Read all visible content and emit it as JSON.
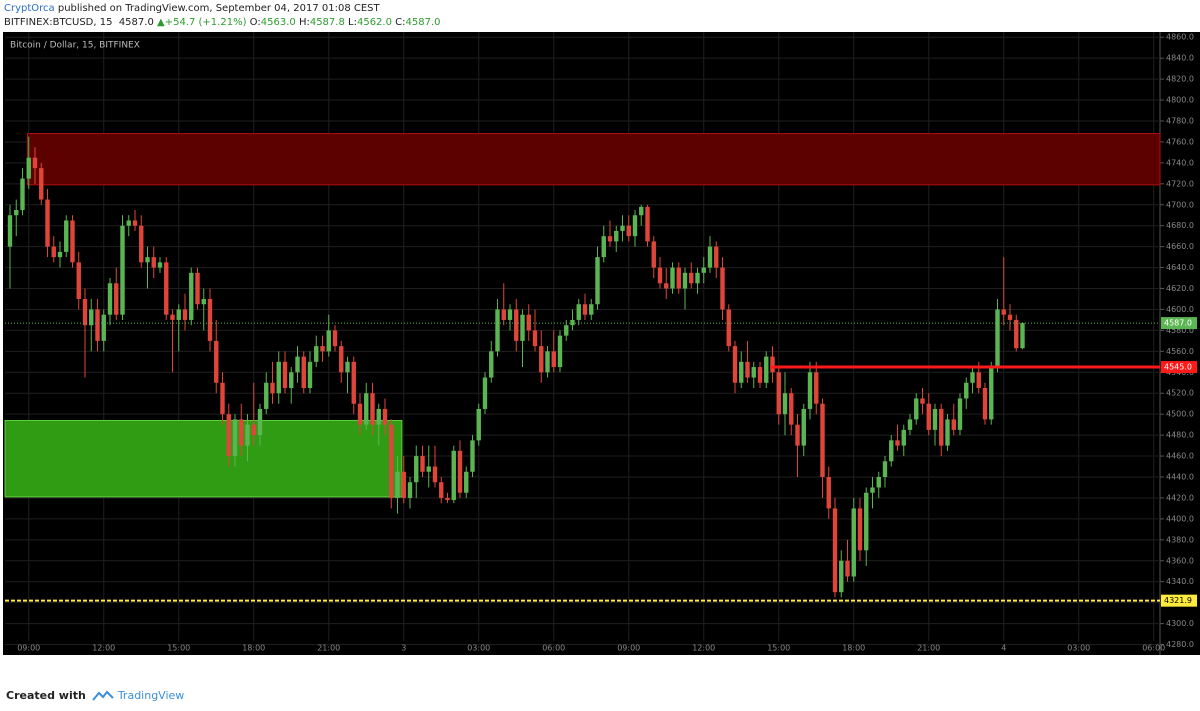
{
  "header": {
    "author": "CryptOrca",
    "published": "published on TradingView.com, September 04, 2017 01:08 CEST",
    "symbol": "BITFINEX:BTCUSD, 15",
    "last": "4587.0",
    "arrow": "▲",
    "change": "+54.7 (+1.21%)",
    "ohlc": [
      {
        "key": "O:",
        "value": "4563.0"
      },
      {
        "key": "H:",
        "value": "4587.8"
      },
      {
        "key": "L:",
        "value": "4562.0"
      },
      {
        "key": "C:",
        "value": "4587.0"
      }
    ]
  },
  "chart_data": {
    "type": "candlestick",
    "title": "Bitcoin / Dollar, 15, BITFINEX",
    "up_color": "#5bb552",
    "down_color": "#e0453a",
    "ylim": [
      4270,
      4865
    ],
    "xlim": [
      -0.8,
      184
    ],
    "yticks": [
      {
        "value": 4280,
        "label": "4280.0"
      },
      {
        "value": 4300,
        "label": "4300.0"
      },
      {
        "value": 4320,
        "label": "4320.0"
      },
      {
        "value": 4340,
        "label": "4340.0"
      },
      {
        "value": 4360,
        "label": "4360.0"
      },
      {
        "value": 4380,
        "label": "4380.0"
      },
      {
        "value": 4400,
        "label": "4400.0"
      },
      {
        "value": 4420,
        "label": "4420.0"
      },
      {
        "value": 4440,
        "label": "4440.0"
      },
      {
        "value": 4460,
        "label": "4460.0"
      },
      {
        "value": 4480,
        "label": "4480.0"
      },
      {
        "value": 4500,
        "label": "4500.0"
      },
      {
        "value": 4520,
        "label": "4520.0"
      },
      {
        "value": 4540,
        "label": "4540.0"
      },
      {
        "value": 4560,
        "label": "4560.0"
      },
      {
        "value": 4580,
        "label": "4580.0"
      },
      {
        "value": 4600,
        "label": "4600.0"
      },
      {
        "value": 4620,
        "label": "4620.0"
      },
      {
        "value": 4640,
        "label": "4640.0"
      },
      {
        "value": 4660,
        "label": "4660.0"
      },
      {
        "value": 4680,
        "label": "4680.0"
      },
      {
        "value": 4700,
        "label": "4700.0"
      },
      {
        "value": 4720,
        "label": "4720.0"
      },
      {
        "value": 4740,
        "label": "4740.0"
      },
      {
        "value": 4760,
        "label": "4760.0"
      },
      {
        "value": 4780,
        "label": "4780.0"
      },
      {
        "value": 4800,
        "label": "4800.0"
      },
      {
        "value": 4820,
        "label": "4820.0"
      },
      {
        "value": 4840,
        "label": "4840.0"
      },
      {
        "value": 4860,
        "label": "4860.0"
      }
    ],
    "xticks": [
      {
        "value": 3,
        "label": "09:00"
      },
      {
        "value": 15,
        "label": "12:00"
      },
      {
        "value": 27,
        "label": "15:00"
      },
      {
        "value": 39,
        "label": "18:00"
      },
      {
        "value": 51,
        "label": "21:00"
      },
      {
        "value": 63,
        "label": "3"
      },
      {
        "value": 75,
        "label": "03:00"
      },
      {
        "value": 87,
        "label": "06:00"
      },
      {
        "value": 99,
        "label": "09:00"
      },
      {
        "value": 111,
        "label": "12:00"
      },
      {
        "value": 123,
        "label": "15:00"
      },
      {
        "value": 135,
        "label": "18:00"
      },
      {
        "value": 147,
        "label": "21:00"
      },
      {
        "value": 159,
        "label": "4"
      },
      {
        "value": 171,
        "label": "03:00"
      },
      {
        "value": 183,
        "label": "06:00"
      }
    ],
    "zones": [
      {
        "x": [
          2.8,
          184
        ],
        "y": [
          4719,
          4768
        ],
        "color": "#5c0000",
        "border": "#b01010"
      },
      {
        "x": [
          -0.8,
          62.7
        ],
        "y": [
          4421,
          4494
        ],
        "color": "#2f9c14",
        "border": "#5fd040"
      }
    ],
    "lines": [
      {
        "value": 4587,
        "label": "4587.0",
        "color": "#5bb552",
        "style": "dotted",
        "start": -0.8
      },
      {
        "value": 4545,
        "label": "4545.0",
        "color": "#ff1a1a",
        "style": "solid",
        "start": 121.6
      },
      {
        "value": 4321.9,
        "label": "4321.9",
        "color": "#ffeb3b",
        "style": "dashed",
        "start": -0.8
      }
    ],
    "candles": [
      [
        4660,
        4700,
        4620,
        4690
      ],
      [
        4690,
        4705,
        4670,
        4695
      ],
      [
        4695,
        4735,
        4690,
        4725
      ],
      [
        4725,
        4765,
        4715,
        4745
      ],
      [
        4745,
        4755,
        4720,
        4735
      ],
      [
        4735,
        4740,
        4700,
        4705
      ],
      [
        4705,
        4715,
        4650,
        4660
      ],
      [
        4660,
        4670,
        4645,
        4650
      ],
      [
        4650,
        4665,
        4640,
        4655
      ],
      [
        4655,
        4690,
        4650,
        4685
      ],
      [
        4685,
        4690,
        4640,
        4645
      ],
      [
        4645,
        4655,
        4600,
        4610
      ],
      [
        4610,
        4620,
        4535,
        4585
      ],
      [
        4585,
        4610,
        4560,
        4600
      ],
      [
        4600,
        4610,
        4560,
        4570
      ],
      [
        4570,
        4600,
        4560,
        4595
      ],
      [
        4595,
        4630,
        4585,
        4625
      ],
      [
        4625,
        4640,
        4590,
        4595
      ],
      [
        4595,
        4690,
        4590,
        4680
      ],
      [
        4680,
        4690,
        4670,
        4685
      ],
      [
        4685,
        4695,
        4675,
        4680
      ],
      [
        4680,
        4690,
        4640,
        4645
      ],
      [
        4645,
        4660,
        4620,
        4650
      ],
      [
        4650,
        4660,
        4630,
        4640
      ],
      [
        4640,
        4650,
        4635,
        4645
      ],
      [
        4645,
        4650,
        4590,
        4595
      ],
      [
        4595,
        4600,
        4540,
        4590
      ],
      [
        4590,
        4605,
        4560,
        4600
      ],
      [
        4600,
        4615,
        4580,
        4590
      ],
      [
        4590,
        4640,
        4585,
        4635
      ],
      [
        4635,
        4640,
        4600,
        4605
      ],
      [
        4605,
        4620,
        4580,
        4610
      ],
      [
        4610,
        4620,
        4560,
        4570
      ],
      [
        4570,
        4590,
        4520,
        4530
      ],
      [
        4530,
        4540,
        4490,
        4500
      ],
      [
        4500,
        4510,
        4450,
        4460
      ],
      [
        4460,
        4500,
        4450,
        4495
      ],
      [
        4495,
        4510,
        4460,
        4470
      ],
      [
        4470,
        4500,
        4455,
        4490
      ],
      [
        4490,
        4530,
        4470,
        4480
      ],
      [
        4480,
        4510,
        4470,
        4505
      ],
      [
        4505,
        4540,
        4500,
        4530
      ],
      [
        4530,
        4550,
        4510,
        4520
      ],
      [
        4520,
        4560,
        4510,
        4550
      ],
      [
        4550,
        4560,
        4520,
        4525
      ],
      [
        4525,
        4545,
        4510,
        4540
      ],
      [
        4540,
        4565,
        4530,
        4555
      ],
      [
        4555,
        4560,
        4520,
        4525
      ],
      [
        4525,
        4560,
        4520,
        4550
      ],
      [
        4550,
        4575,
        4545,
        4565
      ],
      [
        4565,
        4575,
        4550,
        4560
      ],
      [
        4560,
        4595,
        4555,
        4580
      ],
      [
        4580,
        4585,
        4560,
        4565
      ],
      [
        4565,
        4570,
        4530,
        4540
      ],
      [
        4540,
        4555,
        4520,
        4550
      ],
      [
        4550,
        4555,
        4500,
        4510
      ],
      [
        4510,
        4520,
        4480,
        4490
      ],
      [
        4490,
        4530,
        4485,
        4520
      ],
      [
        4520,
        4530,
        4480,
        4490
      ],
      [
        4490,
        4510,
        4470,
        4505
      ],
      [
        4505,
        4515,
        4480,
        4490
      ],
      [
        4490,
        4495,
        4410,
        4420
      ],
      [
        4420,
        4460,
        4405,
        4445
      ],
      [
        4445,
        4460,
        4415,
        4420
      ],
      [
        4420,
        4440,
        4410,
        4435
      ],
      [
        4435,
        4470,
        4420,
        4460
      ],
      [
        4460,
        4470,
        4440,
        4445
      ],
      [
        4445,
        4470,
        4430,
        4450
      ],
      [
        4450,
        4470,
        4430,
        4435
      ],
      [
        4435,
        4440,
        4415,
        4420
      ],
      [
        4420,
        4425,
        4415,
        4418
      ],
      [
        4418,
        4470,
        4415,
        4465
      ],
      [
        4465,
        4475,
        4420,
        4425
      ],
      [
        4425,
        4450,
        4420,
        4445
      ],
      [
        4445,
        4480,
        4440,
        4475
      ],
      [
        4475,
        4510,
        4470,
        4505
      ],
      [
        4505,
        4540,
        4500,
        4535
      ],
      [
        4535,
        4570,
        4530,
        4560
      ],
      [
        4560,
        4610,
        4555,
        4600
      ],
      [
        4600,
        4625,
        4585,
        4590
      ],
      [
        4590,
        4605,
        4580,
        4600
      ],
      [
        4600,
        4610,
        4560,
        4570
      ],
      [
        4570,
        4600,
        4545,
        4595
      ],
      [
        4595,
        4605,
        4570,
        4580
      ],
      [
        4580,
        4600,
        4560,
        4565
      ],
      [
        4565,
        4580,
        4530,
        4540
      ],
      [
        4540,
        4565,
        4535,
        4560
      ],
      [
        4560,
        4580,
        4540,
        4545
      ],
      [
        4545,
        4580,
        4540,
        4575
      ],
      [
        4575,
        4590,
        4570,
        4585
      ],
      [
        4585,
        4600,
        4580,
        4590
      ],
      [
        4590,
        4610,
        4585,
        4605
      ],
      [
        4605,
        4615,
        4590,
        4595
      ],
      [
        4595,
        4610,
        4590,
        4605
      ],
      [
        4605,
        4660,
        4600,
        4650
      ],
      [
        4650,
        4680,
        4645,
        4670
      ],
      [
        4670,
        4685,
        4660,
        4665
      ],
      [
        4665,
        4680,
        4655,
        4675
      ],
      [
        4675,
        4690,
        4665,
        4680
      ],
      [
        4680,
        4690,
        4665,
        4670
      ],
      [
        4670,
        4695,
        4660,
        4690
      ],
      [
        4690,
        4700,
        4680,
        4698
      ],
      [
        4698,
        4700,
        4660,
        4665
      ],
      [
        4665,
        4670,
        4630,
        4640
      ],
      [
        4640,
        4650,
        4620,
        4625
      ],
      [
        4625,
        4640,
        4610,
        4620
      ],
      [
        4620,
        4645,
        4615,
        4640
      ],
      [
        4640,
        4645,
        4615,
        4620
      ],
      [
        4620,
        4640,
        4600,
        4635
      ],
      [
        4635,
        4645,
        4620,
        4625
      ],
      [
        4625,
        4640,
        4615,
        4635
      ],
      [
        4635,
        4650,
        4625,
        4640
      ],
      [
        4640,
        4670,
        4635,
        4660
      ],
      [
        4660,
        4665,
        4630,
        4640
      ],
      [
        4640,
        4650,
        4590,
        4600
      ],
      [
        4600,
        4605,
        4560,
        4565
      ],
      [
        4565,
        4570,
        4520,
        4530
      ],
      [
        4530,
        4560,
        4525,
        4550
      ],
      [
        4550,
        4570,
        4530,
        4535
      ],
      [
        4535,
        4550,
        4525,
        4545
      ],
      [
        4545,
        4550,
        4525,
        4530
      ],
      [
        4530,
        4560,
        4525,
        4555
      ],
      [
        4555,
        4565,
        4530,
        4540
      ],
      [
        4540,
        4545,
        4490,
        4500
      ],
      [
        4500,
        4540,
        4480,
        4520
      ],
      [
        4520,
        4525,
        4480,
        4490
      ],
      [
        4490,
        4500,
        4440,
        4470
      ],
      [
        4470,
        4510,
        4460,
        4505
      ],
      [
        4505,
        4550,
        4495,
        4540
      ],
      [
        4540,
        4550,
        4500,
        4510
      ],
      [
        4510,
        4515,
        4420,
        4440
      ],
      [
        4440,
        4450,
        4400,
        4410
      ],
      [
        4410,
        4420,
        4325,
        4330
      ],
      [
        4330,
        4370,
        4325,
        4360
      ],
      [
        4360,
        4380,
        4340,
        4345
      ],
      [
        4345,
        4420,
        4340,
        4410
      ],
      [
        4410,
        4420,
        4360,
        4370
      ],
      [
        4370,
        4430,
        4355,
        4425
      ],
      [
        4425,
        4440,
        4410,
        4430
      ],
      [
        4430,
        4445,
        4420,
        4440
      ],
      [
        4440,
        4460,
        4430,
        4455
      ],
      [
        4455,
        4480,
        4450,
        4475
      ],
      [
        4475,
        4490,
        4465,
        4470
      ],
      [
        4470,
        4490,
        4460,
        4485
      ],
      [
        4485,
        4500,
        4480,
        4495
      ],
      [
        4495,
        4520,
        4490,
        4515
      ],
      [
        4515,
        4525,
        4500,
        4510
      ],
      [
        4510,
        4520,
        4480,
        4485
      ],
      [
        4485,
        4510,
        4470,
        4505
      ],
      [
        4505,
        4510,
        4460,
        4470
      ],
      [
        4470,
        4500,
        4465,
        4495
      ],
      [
        4495,
        4510,
        4480,
        4485
      ],
      [
        4485,
        4520,
        4480,
        4515
      ],
      [
        4515,
        4535,
        4505,
        4530
      ],
      [
        4530,
        4545,
        4520,
        4540
      ],
      [
        4540,
        4550,
        4520,
        4525
      ],
      [
        4525,
        4530,
        4490,
        4495
      ],
      [
        4495,
        4550,
        4490,
        4545
      ],
      [
        4545,
        4610,
        4540,
        4600
      ],
      [
        4600,
        4650,
        4585,
        4595
      ],
      [
        4595,
        4605,
        4580,
        4590
      ],
      [
        4590,
        4595,
        4560,
        4563
      ],
      [
        4563,
        4587.8,
        4562,
        4587
      ]
    ]
  },
  "footer": {
    "text": "Created with",
    "brand": "TradingView"
  }
}
